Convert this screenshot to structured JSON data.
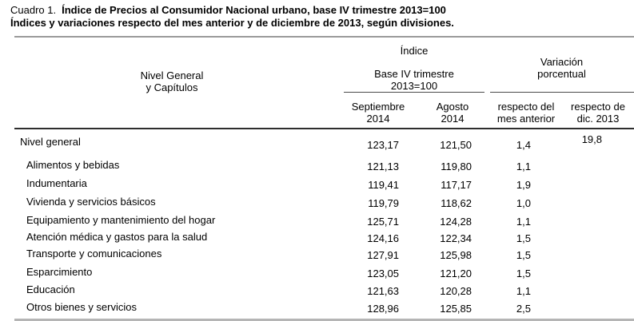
{
  "title": {
    "prefix": "Cuadro 1.",
    "main": "Índice de Precios al Consumidor Nacional urbano, base IV trimestre 2013=100",
    "subtitle": "Índices y variaciones respecto del mes anterior y de diciembre de 2013, según divisiones."
  },
  "table": {
    "row_header": {
      "line1": "Nivel General",
      "line2": "y Capítulos"
    },
    "indice_group": {
      "title": "Índice",
      "base_line1": "Base IV trimestre",
      "base_line2": "2013=100"
    },
    "variacion_group": {
      "line1": "Variación",
      "line2": "porcentual"
    },
    "columns": [
      {
        "line1": "Septiembre",
        "line2": "2014"
      },
      {
        "line1": "Agosto",
        "line2": "2014"
      },
      {
        "line1": "respecto del",
        "line2": "mes anterior"
      },
      {
        "line1": "respecto de",
        "line2": "dic. 2013"
      }
    ],
    "rows": [
      {
        "label": "Nivel general",
        "indent": false,
        "sept": "123,17",
        "agosto": "121,50",
        "var_mes": "1,4",
        "var_dic": "19,8"
      },
      {
        "label": "Alimentos y bebidas",
        "indent": true,
        "sept": "121,13",
        "agosto": "119,80",
        "var_mes": "1,1",
        "var_dic": ""
      },
      {
        "label": "Indumentaria",
        "indent": true,
        "sept": "119,41",
        "agosto": "117,17",
        "var_mes": "1,9",
        "var_dic": ""
      },
      {
        "label": "Vivienda y servicios básicos",
        "indent": true,
        "sept": "119,79",
        "agosto": "118,62",
        "var_mes": "1,0",
        "var_dic": ""
      },
      {
        "label": "Equipamiento y mantenimiento del hogar",
        "indent": true,
        "sept": "125,71",
        "agosto": "124,28",
        "var_mes": "1,1",
        "var_dic": ""
      },
      {
        "label": "Atención médica y gastos para la salud",
        "indent": true,
        "sept": "124,16",
        "agosto": "122,34",
        "var_mes": "1,5",
        "var_dic": ""
      },
      {
        "label": "Transporte y comunicaciones",
        "indent": true,
        "sept": "127,91",
        "agosto": "125,98",
        "var_mes": "1,5",
        "var_dic": ""
      },
      {
        "label": "Esparcimiento",
        "indent": true,
        "sept": "123,05",
        "agosto": "121,20",
        "var_mes": "1,5",
        "var_dic": ""
      },
      {
        "label": "Educación",
        "indent": true,
        "sept": "121,63",
        "agosto": "120,28",
        "var_mes": "1,1",
        "var_dic": ""
      },
      {
        "label": "Otros bienes y servicios",
        "indent": true,
        "sept": "128,96",
        "agosto": "125,85",
        "var_mes": "2,5",
        "var_dic": ""
      }
    ]
  },
  "colors": {
    "background": "#ffffff",
    "text": "#000000",
    "rule_light_gray": "#9a9a9a",
    "rule_dark": "#2e2e2e",
    "rule_thin": "#4a4a4a"
  }
}
